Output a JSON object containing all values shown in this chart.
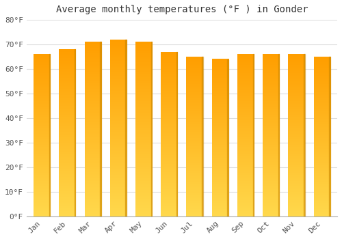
{
  "title": "Average monthly temperatures (°F ) in Gonder",
  "months": [
    "Jan",
    "Feb",
    "Mar",
    "Apr",
    "May",
    "Jun",
    "Jul",
    "Aug",
    "Sep",
    "Oct",
    "Nov",
    "Dec"
  ],
  "values": [
    66,
    68,
    71,
    72,
    71,
    67,
    65,
    64,
    66,
    66,
    66,
    65
  ],
  "bar_color_top": "#FFAA00",
  "bar_color_bottom": "#FFD966",
  "bar_color_edge": "#CC8800",
  "background_color": "#FFFFFF",
  "plot_bg_color": "#FFFFFF",
  "ylim": [
    0,
    80
  ],
  "yticks": [
    0,
    10,
    20,
    30,
    40,
    50,
    60,
    70,
    80
  ],
  "grid_color": "#DDDDDD",
  "title_fontsize": 10,
  "tick_fontsize": 8,
  "font_family": "monospace"
}
